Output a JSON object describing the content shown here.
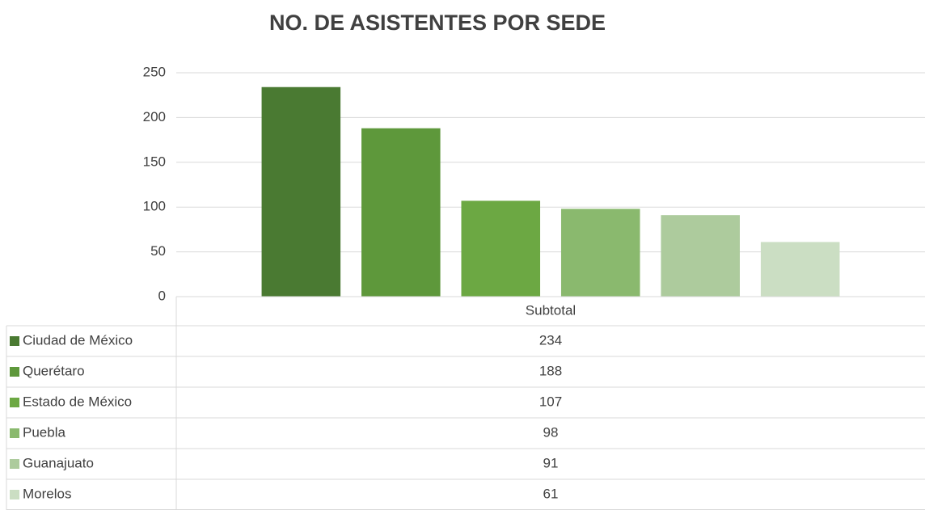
{
  "chart_data": {
    "type": "bar",
    "title": "NO. DE ASISTENTES POR SEDE",
    "categories": [
      "Subtotal"
    ],
    "series": [
      {
        "name": "Ciudad de México",
        "color": "#4a7a32",
        "values": [
          234
        ]
      },
      {
        "name": "Querétaro",
        "color": "#5e983b",
        "values": [
          188
        ]
      },
      {
        "name": "Estado de México",
        "color": "#6ca843",
        "values": [
          107
        ]
      },
      {
        "name": "Puebla",
        "color": "#8ab96e",
        "values": [
          98
        ]
      },
      {
        "name": "Guanajuato",
        "color": "#adcb9d",
        "values": [
          91
        ]
      },
      {
        "name": "Morelos",
        "color": "#cbdec3",
        "values": [
          61
        ]
      }
    ],
    "ylim": [
      0,
      250
    ],
    "yticks": [
      0,
      50,
      100,
      150,
      200,
      250
    ],
    "grid": true,
    "data_table": true
  }
}
